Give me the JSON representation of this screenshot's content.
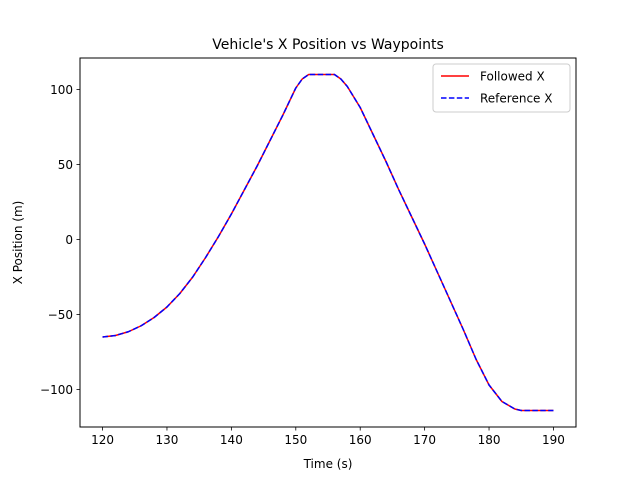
{
  "chart_data": {
    "type": "line",
    "title": "Vehicle's X Position vs Waypoints",
    "xlabel": "Time (s)",
    "ylabel": "X Position (m)",
    "xlim": [
      116.5,
      193.5
    ],
    "ylim": [
      -125,
      121
    ],
    "xticks": [
      120,
      130,
      140,
      150,
      160,
      170,
      180,
      190
    ],
    "yticks": [
      -100,
      -50,
      0,
      50,
      100
    ],
    "ytick_labels": [
      "−100",
      "−50",
      "0",
      "50",
      "100"
    ],
    "grid": false,
    "legend_position": "top-right",
    "series": [
      {
        "name": "Followed X",
        "color": "#ff0000",
        "style": "solid",
        "x": [
          120,
          122,
          124,
          126,
          128,
          130,
          132,
          134,
          136,
          138,
          140,
          142,
          144,
          146,
          148,
          150,
          151,
          152,
          154,
          155,
          156,
          157,
          158,
          160,
          162,
          164,
          166,
          168,
          170,
          172,
          174,
          176,
          178,
          180,
          182,
          184,
          185,
          186,
          187,
          188,
          190
        ],
        "y": [
          -65,
          -64,
          -61.5,
          -57.5,
          -52,
          -45,
          -36,
          -25,
          -12,
          2,
          17,
          33,
          49,
          66,
          83,
          101,
          107,
          110,
          110,
          110,
          110,
          107,
          102,
          88,
          70,
          52,
          33,
          15,
          -3,
          -22,
          -41,
          -60,
          -80,
          -97,
          -108,
          -113,
          -114,
          -114,
          -114,
          -114,
          -114
        ]
      },
      {
        "name": "Reference X",
        "color": "#0000ff",
        "style": "dashed",
        "x": [
          120,
          122,
          124,
          126,
          128,
          130,
          132,
          134,
          136,
          138,
          140,
          142,
          144,
          146,
          148,
          150,
          151,
          152,
          154,
          155,
          156,
          157,
          158,
          160,
          162,
          164,
          166,
          168,
          170,
          172,
          174,
          176,
          178,
          180,
          182,
          184,
          185,
          186,
          187,
          188,
          190
        ],
        "y": [
          -65,
          -64,
          -61.5,
          -57.5,
          -52,
          -45,
          -36,
          -25,
          -12,
          2,
          17,
          33,
          49,
          66,
          83,
          101,
          107,
          110,
          110,
          110,
          110,
          107,
          102,
          88,
          70,
          52,
          33,
          15,
          -3,
          -22,
          -41,
          -60,
          -80,
          -97,
          -108,
          -113,
          -114,
          -114,
          -114,
          -114,
          -114
        ]
      }
    ]
  }
}
